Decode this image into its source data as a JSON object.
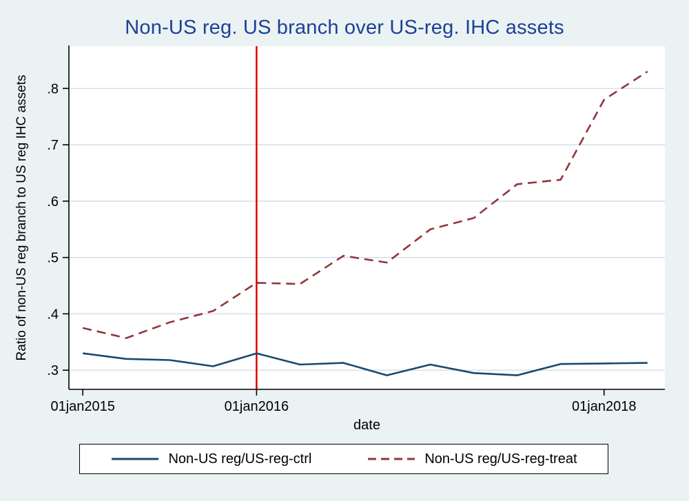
{
  "figure": {
    "title": "Non-US reg. US branch over US-reg. IHC assets",
    "ylabel": "Ratio of non-US reg branch to US reg IHC assets",
    "xlabel": "date"
  },
  "legend": {
    "entries": [
      {
        "label": "Non-US reg/US-reg-ctrl",
        "style": "solid",
        "color": "#1a476f"
      },
      {
        "label": "Non-US reg/US-reg-treat",
        "style": "dashed",
        "color": "#90353b"
      }
    ]
  },
  "chart_data": {
    "type": "line",
    "title": "Non-US reg. US branch over US-reg. IHC assets",
    "xlabel": "date",
    "ylabel": "Ratio of non-US reg branch to US reg IHC assets",
    "x": [
      2015.0,
      2015.25,
      2015.5,
      2015.75,
      2016.0,
      2016.25,
      2016.5,
      2016.75,
      2017.0,
      2017.25,
      2017.5,
      2017.75,
      2018.0,
      2018.25
    ],
    "x_unit": "quarterly, decimal years",
    "series": [
      {
        "name": "Non-US reg/US-reg-ctrl",
        "color": "#1a476f",
        "style": "solid",
        "values": [
          0.33,
          0.32,
          0.318,
          0.307,
          0.33,
          0.31,
          0.313,
          0.291,
          0.31,
          0.295,
          0.291,
          0.311,
          0.312,
          0.313
        ]
      },
      {
        "name": "Non-US reg/US-reg-treat",
        "color": "#90353b",
        "style": "dashed",
        "values": [
          0.375,
          0.357,
          0.385,
          0.405,
          0.455,
          0.453,
          0.503,
          0.491,
          0.55,
          0.57,
          0.63,
          0.638,
          0.78,
          0.83
        ]
      }
    ],
    "x_ticks": [
      {
        "v": 2015,
        "label": "01jan2015"
      },
      {
        "v": 2016,
        "label": "01jan2016"
      },
      {
        "v": 2018,
        "label": "01jan2018"
      }
    ],
    "y_ticks": [
      {
        "v": 0.3,
        "label": ".3"
      },
      {
        "v": 0.4,
        "label": ".4"
      },
      {
        "v": 0.5,
        "label": ".5"
      },
      {
        "v": 0.6,
        "label": ".6"
      },
      {
        "v": 0.7,
        "label": ".7"
      },
      {
        "v": 0.8,
        "label": ".8"
      }
    ],
    "xlim": [
      2014.92,
      2018.35
    ],
    "ylim": [
      0.266,
      0.875
    ],
    "vline": {
      "x": 2016,
      "color": "#dd0000"
    },
    "grid": "horizontal-only",
    "legend_position": "bottom",
    "colors": {
      "background": "#eaf2f3",
      "plot_background": "#ffffff",
      "grid": "#c9d9e3",
      "axis": "#000000",
      "title": "#1e3f96"
    }
  }
}
